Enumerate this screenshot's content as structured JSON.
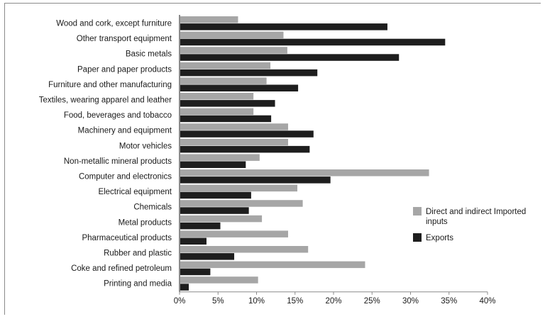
{
  "chart_data": {
    "type": "bar",
    "orientation": "horizontal",
    "categories": [
      "Wood and cork, except furniture",
      "Other transport equipment",
      "Basic metals",
      "Paper and paper products",
      "Furniture and other manufacturing",
      "Textiles, wearing apparel and leather",
      "Food, beverages and tobacco",
      "Machinery and equipment",
      "Motor vehicles",
      "Non-metallic mineral products",
      "Computer and electronics",
      "Electrical equipment",
      "Chemicals",
      "Metal products",
      "Pharmaceutical products",
      "Rubber and plastic",
      "Coke and refined petroleum",
      "Printing and media"
    ],
    "series": [
      {
        "name": "Direct and indirect Imported inputs",
        "color": "#a6a6a6",
        "values": [
          7.6,
          13.5,
          14.0,
          11.8,
          11.3,
          9.6,
          9.6,
          14.1,
          14.1,
          10.4,
          32.4,
          15.3,
          16.0,
          10.7,
          14.1,
          16.7,
          24.1,
          10.2
        ]
      },
      {
        "name": "Exports",
        "color": "#1e1e1e",
        "values": [
          27.0,
          34.5,
          28.5,
          17.9,
          15.4,
          12.4,
          11.9,
          17.4,
          16.9,
          8.6,
          19.6,
          9.3,
          9.0,
          5.3,
          3.5,
          7.1,
          4.0,
          1.2
        ]
      }
    ],
    "xlim": [
      0,
      40
    ],
    "xticks": [
      "0%",
      "5%",
      "10%",
      "15%",
      "20%",
      "25%",
      "30%",
      "35%",
      "40%"
    ],
    "xtick_values": [
      0,
      5,
      10,
      15,
      20,
      25,
      30,
      35,
      40
    ],
    "legend_position": "right",
    "grid": false
  }
}
